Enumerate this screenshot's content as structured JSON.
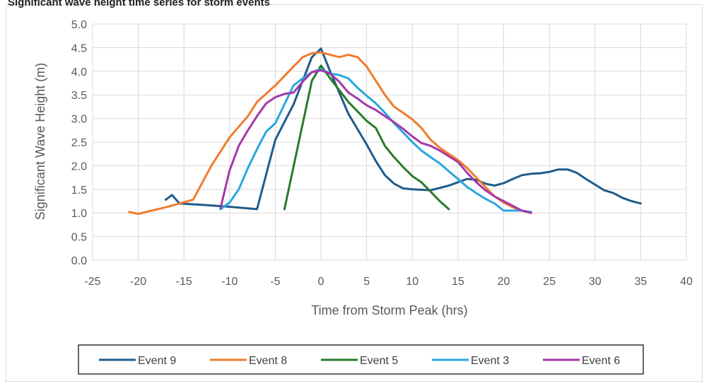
{
  "caption": "Significant wave height time series for storm events",
  "chart_data": {
    "type": "line",
    "xlabel": "Time from Storm Peak (hrs)",
    "ylabel": "Significant Wave Height (m)",
    "xlim": [
      -25,
      40
    ],
    "ylim": [
      0,
      5
    ],
    "xticks": [
      -25,
      -20,
      -15,
      -10,
      -5,
      0,
      5,
      10,
      15,
      20,
      25,
      30,
      35,
      40
    ],
    "yticks": [
      0.0,
      0.5,
      1.0,
      1.5,
      2.0,
      2.5,
      3.0,
      3.5,
      4.0,
      4.5,
      5.0
    ],
    "ytick_labels": [
      "0.0",
      "0.5",
      "1.0",
      "1.5",
      "2.0",
      "2.5",
      "3.0",
      "3.5",
      "4.0",
      "4.5",
      "5.0"
    ],
    "grid": true,
    "legend_position": "bottom",
    "series": [
      {
        "name": "Event 9",
        "color": "#1f5c8b",
        "x": [
          -17,
          -16.3,
          -15.5,
          -13,
          -10,
          -7,
          -5,
          -3,
          -1,
          0,
          1,
          3,
          5,
          6,
          7,
          8,
          9,
          10,
          12,
          14,
          15,
          16,
          17,
          18,
          19,
          20,
          21,
          22,
          23,
          24,
          25,
          26,
          27,
          28,
          29,
          30,
          31,
          32,
          33,
          34,
          35
        ],
        "y": [
          1.28,
          1.38,
          1.2,
          1.17,
          1.13,
          1.08,
          2.55,
          3.3,
          4.3,
          4.48,
          4.0,
          3.1,
          2.45,
          2.1,
          1.8,
          1.62,
          1.52,
          1.5,
          1.48,
          1.58,
          1.65,
          1.72,
          1.7,
          1.62,
          1.58,
          1.63,
          1.72,
          1.8,
          1.83,
          1.84,
          1.87,
          1.92,
          1.92,
          1.85,
          1.72,
          1.6,
          1.48,
          1.42,
          1.32,
          1.25,
          1.2
        ]
      },
      {
        "name": "Event 8",
        "color": "#f07c2c",
        "x": [
          -21,
          -20,
          -17,
          -14,
          -12,
          -10,
          -8,
          -7,
          -5,
          -3,
          -2,
          -1,
          0,
          1,
          2,
          3,
          4,
          5,
          6,
          7,
          8,
          9,
          10,
          11,
          12,
          13,
          14,
          15,
          16,
          17,
          18,
          19,
          20,
          21,
          22,
          23
        ],
        "y": [
          1.02,
          0.98,
          1.12,
          1.28,
          2.0,
          2.6,
          3.05,
          3.35,
          3.7,
          4.1,
          4.3,
          4.38,
          4.4,
          4.35,
          4.3,
          4.35,
          4.3,
          4.1,
          3.8,
          3.5,
          3.25,
          3.12,
          2.98,
          2.8,
          2.55,
          2.38,
          2.25,
          2.12,
          1.95,
          1.75,
          1.55,
          1.35,
          1.22,
          1.12,
          1.05,
          1.0
        ]
      },
      {
        "name": "Event 5",
        "color": "#2a7a2a",
        "x": [
          -4,
          -1,
          0,
          1,
          2,
          3,
          4,
          5,
          6,
          7,
          8,
          9,
          10,
          11,
          12,
          13,
          14
        ],
        "y": [
          1.08,
          3.8,
          4.12,
          3.85,
          3.6,
          3.35,
          3.15,
          2.95,
          2.8,
          2.42,
          2.18,
          1.97,
          1.78,
          1.65,
          1.45,
          1.25,
          1.08
        ]
      },
      {
        "name": "Event 3",
        "color": "#29a7df",
        "x": [
          -11,
          -10,
          -9,
          -8,
          -7,
          -6,
          -5,
          -4,
          -3,
          -2,
          -1,
          0,
          1,
          2,
          3,
          4,
          5,
          6,
          7,
          8,
          9,
          10,
          11,
          12,
          13,
          14,
          15,
          16,
          17,
          18,
          19,
          20,
          21,
          22,
          23
        ],
        "y": [
          1.08,
          1.22,
          1.5,
          1.95,
          2.35,
          2.72,
          2.9,
          3.3,
          3.7,
          3.85,
          3.98,
          4.05,
          3.95,
          3.92,
          3.85,
          3.65,
          3.48,
          3.32,
          3.12,
          2.9,
          2.7,
          2.5,
          2.32,
          2.18,
          2.05,
          1.88,
          1.72,
          1.55,
          1.42,
          1.3,
          1.2,
          1.05,
          1.05,
          1.05,
          1.02
        ]
      },
      {
        "name": "Event 6",
        "color": "#a637a8",
        "x": [
          -11,
          -10,
          -9,
          -8,
          -7,
          -6,
          -5,
          -4,
          -3,
          -2,
          -1,
          0,
          1,
          2,
          3,
          4,
          5,
          6,
          7,
          8,
          9,
          10,
          11,
          12,
          13,
          14,
          15,
          16,
          17,
          18,
          19,
          20,
          21,
          22,
          23
        ],
        "y": [
          1.1,
          1.9,
          2.42,
          2.75,
          3.05,
          3.32,
          3.45,
          3.52,
          3.55,
          3.78,
          3.98,
          4.02,
          3.95,
          3.78,
          3.55,
          3.42,
          3.28,
          3.18,
          3.05,
          2.92,
          2.78,
          2.62,
          2.48,
          2.42,
          2.32,
          2.2,
          2.08,
          1.85,
          1.65,
          1.48,
          1.35,
          1.25,
          1.15,
          1.05,
          1.0
        ]
      }
    ]
  }
}
